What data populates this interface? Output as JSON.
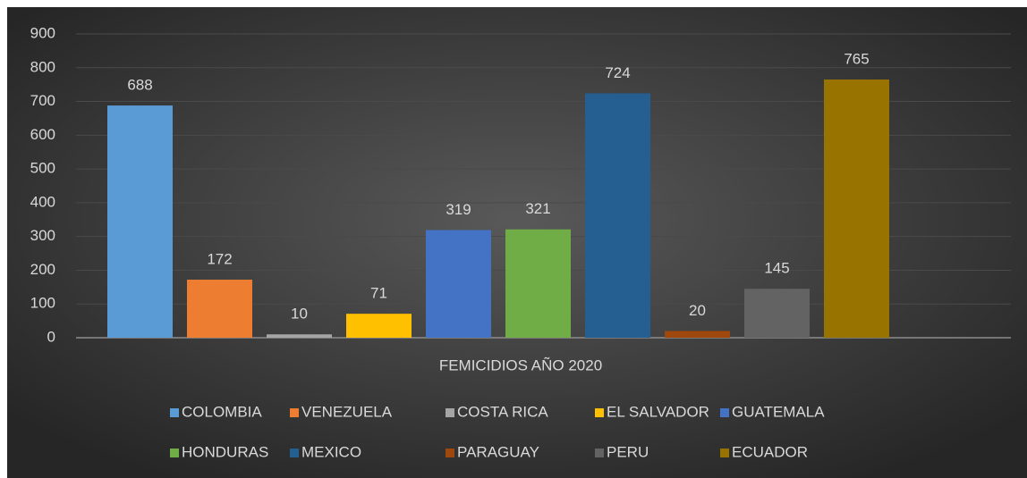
{
  "chart_data": {
    "type": "bar",
    "categories": [
      "FEMICIDIOS AÑO 2020"
    ],
    "series": [
      {
        "name": "COLOMBIA",
        "color": "#5b9bd5",
        "values": [
          688
        ]
      },
      {
        "name": "VENEZUELA",
        "color": "#ed7d31",
        "values": [
          172
        ]
      },
      {
        "name": "COSTA RICA",
        "color": "#a5a5a5",
        "values": [
          10
        ]
      },
      {
        "name": "EL SALVADOR",
        "color": "#ffc000",
        "values": [
          71
        ]
      },
      {
        "name": "GUATEMALA",
        "color": "#4472c4",
        "values": [
          319
        ]
      },
      {
        "name": "HONDURAS",
        "color": "#70ad47",
        "values": [
          321
        ]
      },
      {
        "name": "MEXICO",
        "color": "#255e91",
        "values": [
          724
        ]
      },
      {
        "name": "PARAGUAY",
        "color": "#9e480e",
        "values": [
          20
        ]
      },
      {
        "name": "PERU",
        "color": "#636363",
        "values": [
          145
        ]
      },
      {
        "name": "ECUADOR",
        "color": "#997300",
        "values": [
          765
        ]
      }
    ],
    "ylim": [
      0,
      900
    ],
    "yticks": [
      0,
      100,
      200,
      300,
      400,
      500,
      600,
      700,
      800,
      900
    ],
    "grid": true,
    "legend": "bottom"
  }
}
